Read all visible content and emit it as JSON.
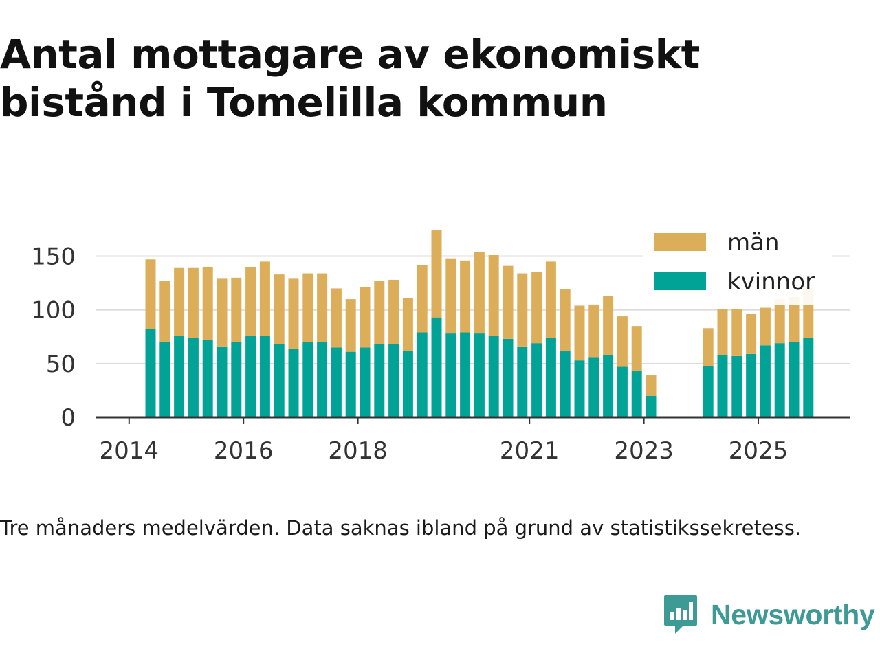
{
  "title": "Antal mottagare av ekonomiskt bistånd i Tomelilla kommun",
  "note": "Tre månaders medelvärden. Data saknas ibland på grund av statistikssekretess.",
  "brand": {
    "name": "Newsworthy",
    "icon": "newsworthy-logo-icon",
    "color": "#3d9a94"
  },
  "chart_data": {
    "type": "bar",
    "stacked": true,
    "x_unit": "quarter",
    "categories": [
      "2014 Q2",
      "2014 Q3",
      "2014 Q4",
      "2015 Q1",
      "2015 Q2",
      "2015 Q3",
      "2015 Q4",
      "2016 Q1",
      "2016 Q2",
      "2016 Q3",
      "2016 Q4",
      "2017 Q1",
      "2017 Q2",
      "2017 Q3",
      "2017 Q4",
      "2018 Q1",
      "2018 Q2",
      "2018 Q3",
      "2018 Q4",
      "2019 Q1",
      "2019 Q2",
      "2019 Q3",
      "2019 Q4",
      "2020 Q1",
      "2020 Q2",
      "2020 Q3",
      "2020 Q4",
      "2021 Q1",
      "2021 Q2",
      "2021 Q3",
      "2021 Q4",
      "2022 Q1",
      "2022 Q2",
      "2022 Q3",
      "2022 Q4",
      "2023 Q1",
      "2023 Q2",
      "2023 Q3",
      "2023 Q4",
      "2024 Q1",
      "2024 Q2",
      "2024 Q3",
      "2024 Q4",
      "2025 Q1",
      "2025 Q2",
      "2025 Q3",
      "2025 Q4"
    ],
    "series": [
      {
        "name": "kvinnor",
        "color": "#00a396",
        "values": [
          82,
          70,
          76,
          74,
          72,
          66,
          70,
          76,
          76,
          68,
          64,
          70,
          70,
          65,
          61,
          65,
          68,
          68,
          62,
          79,
          93,
          78,
          79,
          78,
          76,
          73,
          66,
          69,
          74,
          62,
          53,
          56,
          58,
          47,
          43,
          20,
          null,
          null,
          null,
          48,
          58,
          57,
          59,
          67,
          69,
          70,
          74
        ]
      },
      {
        "name": "män",
        "color": "#dcae5a",
        "values": [
          65,
          57,
          63,
          65,
          68,
          63,
          60,
          64,
          69,
          65,
          65,
          64,
          64,
          55,
          49,
          56,
          59,
          60,
          49,
          63,
          81,
          70,
          67,
          76,
          75,
          68,
          68,
          66,
          71,
          57,
          51,
          49,
          55,
          47,
          42,
          19,
          null,
          null,
          null,
          35,
          43,
          44,
          37,
          35,
          41,
          42,
          46
        ]
      }
    ],
    "x_ticks": [
      "2014",
      "2016",
      "2018",
      "2021",
      "2023",
      "2025"
    ],
    "y_ticks": [
      0,
      50,
      100,
      150
    ],
    "ylim": [
      0,
      175
    ],
    "grid": true,
    "legend": {
      "position": "top-right",
      "entries": [
        "män",
        "kvinnor"
      ]
    },
    "title": "Antal mottagare av ekonomiskt bistånd i Tomelilla kommun",
    "xlabel": "",
    "ylabel": ""
  }
}
